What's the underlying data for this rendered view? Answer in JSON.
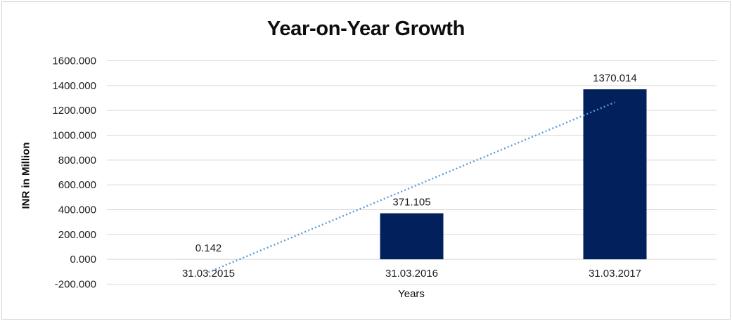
{
  "chart": {
    "title": "Year-on-Year Growth",
    "y_axis_title": "INR in Million",
    "x_axis_title": "Years"
  },
  "chart_data": {
    "type": "bar",
    "title": "Year-on-Year Growth",
    "xlabel": "Years",
    "ylabel": "INR in Million",
    "categories": [
      "31.03.2015",
      "31.03.2016",
      "31.03.2017"
    ],
    "values": [
      0.142,
      371.105,
      1370.014
    ],
    "data_labels": [
      "0.142",
      "371.105",
      "1370.014"
    ],
    "y_ticks": [
      1600,
      1400,
      1200,
      1000,
      800,
      600,
      400,
      200,
      0,
      -200
    ],
    "y_tick_labels": [
      "1600.000",
      "1400.000",
      "1200.000",
      "1000.000",
      "800.000",
      "600.000",
      "400.000",
      "200.000",
      "0.000",
      "-200.000"
    ],
    "ylim": [
      -200,
      1600
    ],
    "grid": true,
    "legend": "none",
    "trendline": {
      "type": "linear",
      "style": "dotted"
    },
    "colors": {
      "bar": "#02215C",
      "trendline": "#5B9BD5",
      "grid": "#D9D9D9",
      "text": "#1A1A1A",
      "frame": "#D2D2D2"
    }
  }
}
